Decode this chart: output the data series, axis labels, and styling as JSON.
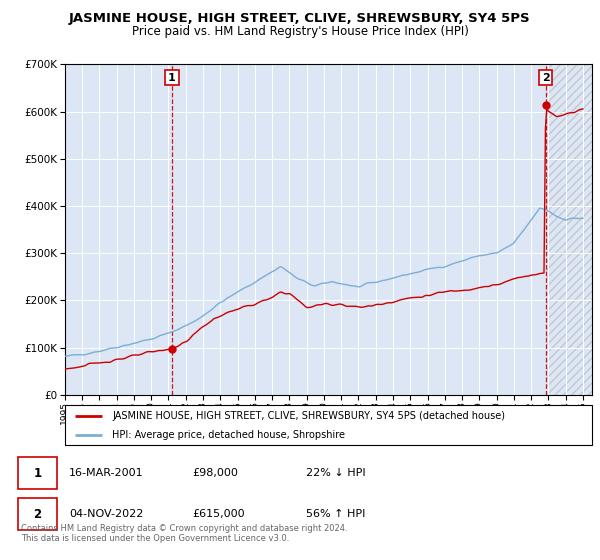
{
  "title": "JASMINE HOUSE, HIGH STREET, CLIVE, SHREWSBURY, SY4 5PS",
  "subtitle": "Price paid vs. HM Land Registry's House Price Index (HPI)",
  "sale1_year": 2001.21,
  "sale1_price": 98000,
  "sale1_date": "16-MAR-2001",
  "sale1_pct": "22% ↓ HPI",
  "sale2_year": 2022.84,
  "sale2_price": 615000,
  "sale2_date": "04-NOV-2022",
  "sale2_pct": "56% ↑ HPI",
  "hpi_label": "HPI: Average price, detached house, Shropshire",
  "property_label": "JASMINE HOUSE, HIGH STREET, CLIVE, SHREWSBURY, SY4 5PS (detached house)",
  "ylim": [
    0,
    700000
  ],
  "xlim_start": 1995.0,
  "xlim_end": 2025.5,
  "bg_color": "#dce6f5",
  "red_color": "#cc0000",
  "blue_color": "#7bafd4",
  "footnote": "Contains HM Land Registry data © Crown copyright and database right 2024.\nThis data is licensed under the Open Government Licence v3.0."
}
